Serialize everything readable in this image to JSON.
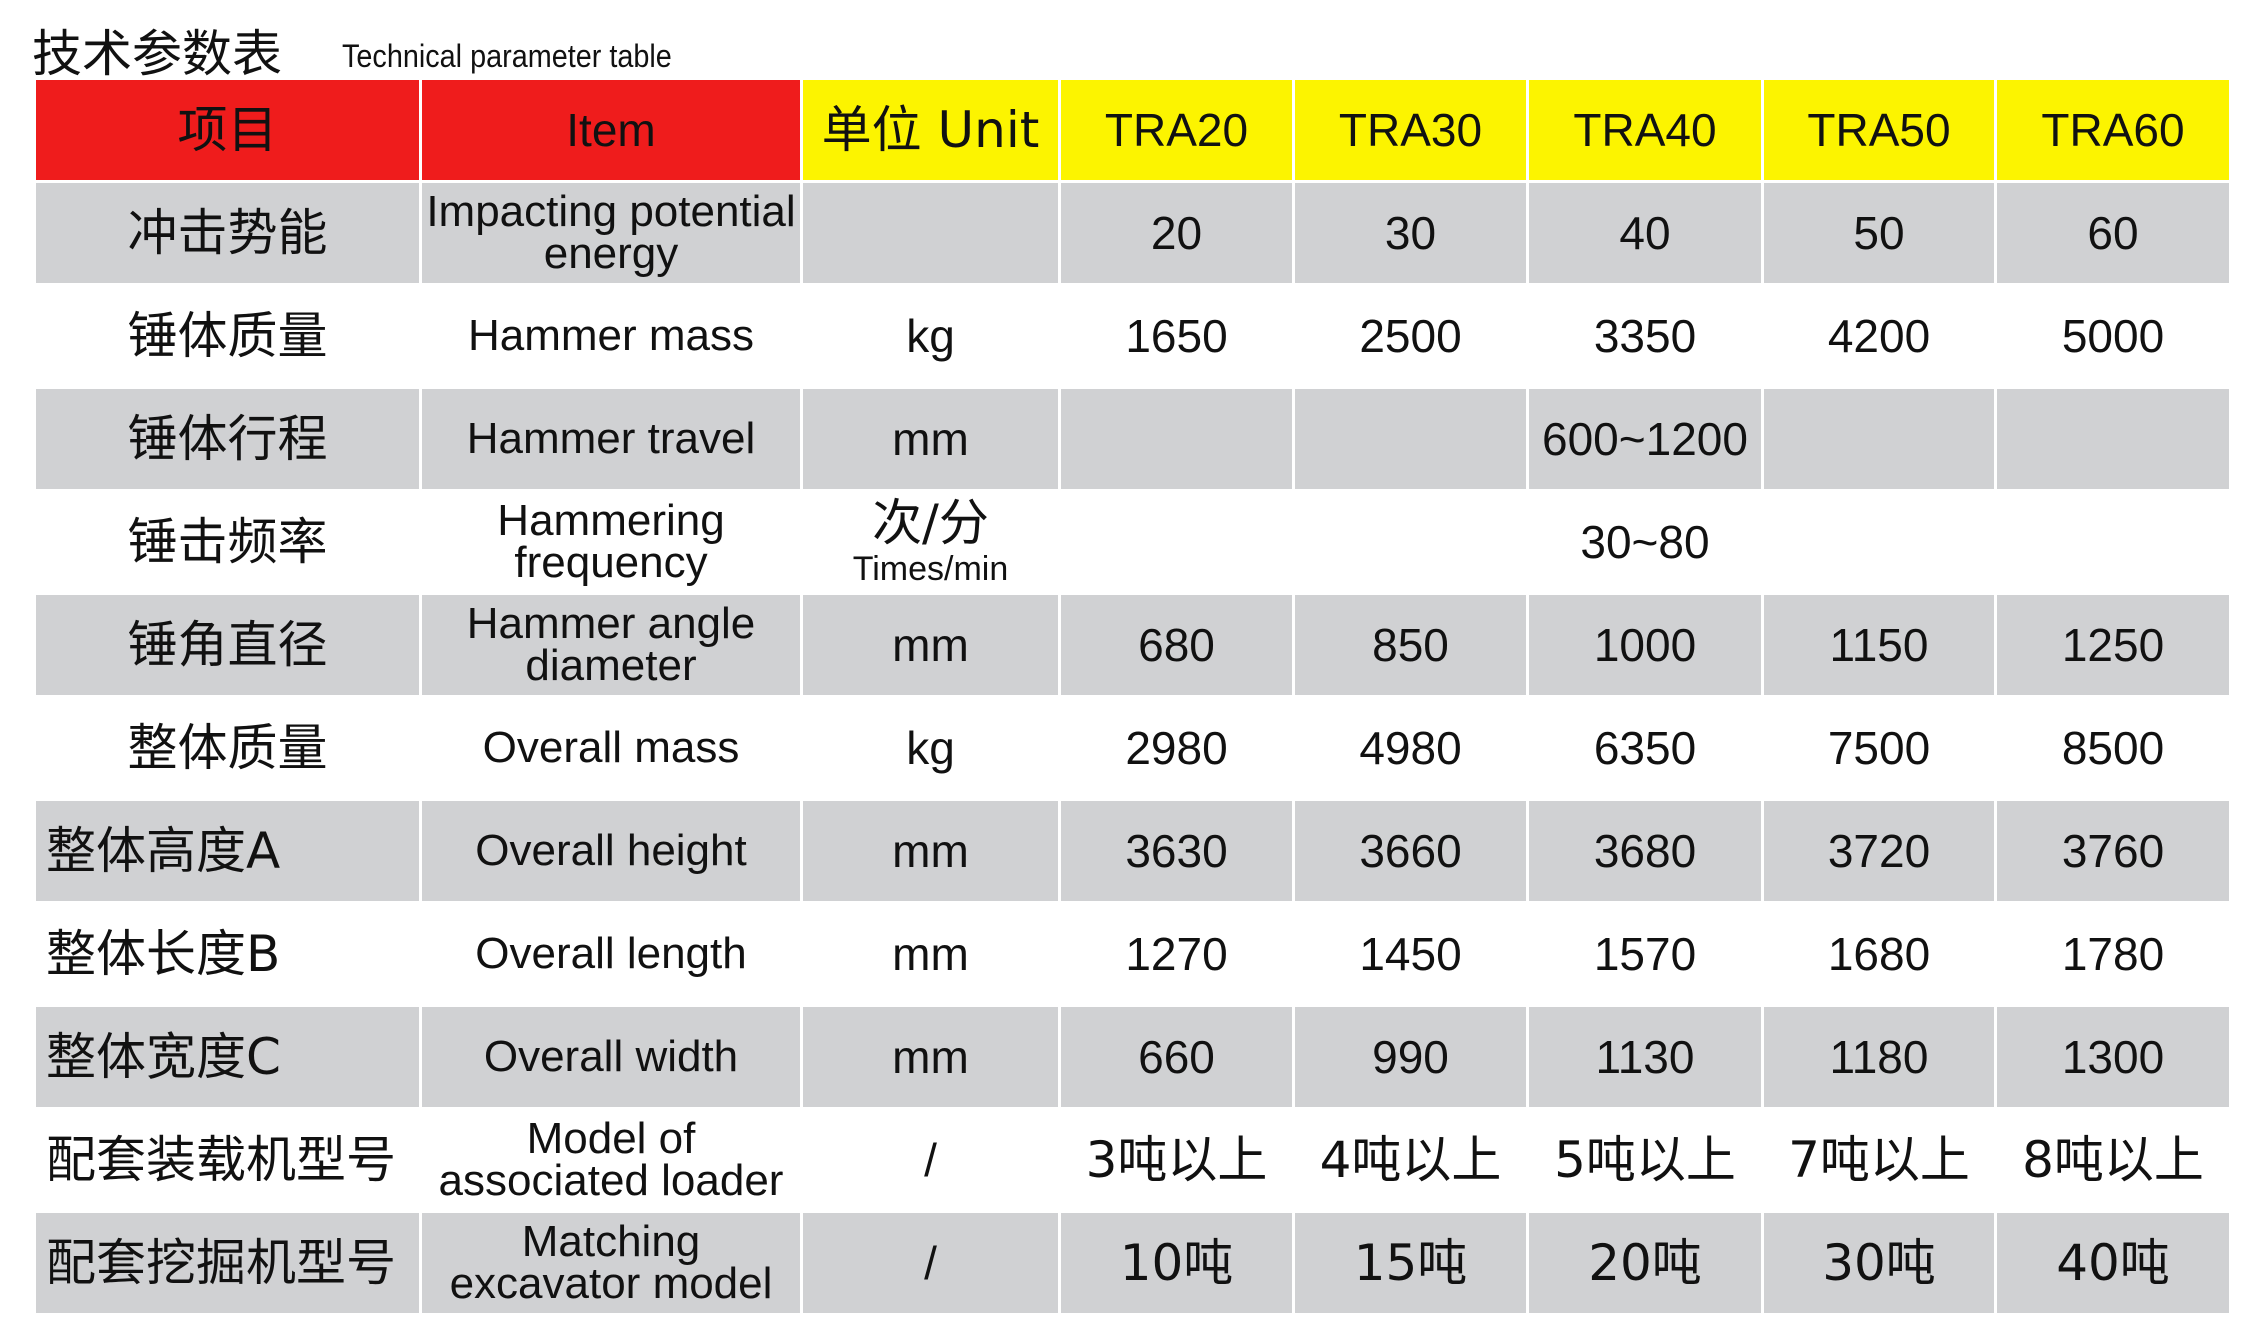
{
  "title_cn": "技术参数表",
  "title_en": "Technical parameter table",
  "colors": {
    "header_red": "#ef1c1c",
    "header_yellow": "#fcf400",
    "row_gray": "#d0d1d3"
  },
  "header": [
    "项目",
    "Item",
    "单位 Unit",
    "TRA20",
    "TRA30",
    "TRA40",
    "TRA50",
    "TRA60"
  ],
  "rows": [
    {
      "cn": "冲击势能",
      "en": "Impacting potential energy",
      "unit": "",
      "values": [
        "20",
        "30",
        "40",
        "50",
        "60"
      ]
    },
    {
      "cn": "锤体质量",
      "en": "Hammer mass",
      "unit": "kg",
      "values": [
        "1650",
        "2500",
        "3350",
        "4200",
        "5000"
      ]
    },
    {
      "cn": "锤体行程",
      "en": "Hammer travel",
      "unit": "mm",
      "values": [
        "",
        "",
        "600~1200",
        "",
        ""
      ]
    },
    {
      "cn": "锤击频率",
      "en": "Hammering frequency",
      "unit": "次/分",
      "unit_sub": "Times/min",
      "values": [
        "30~80"
      ]
    },
    {
      "cn": "锤角直径",
      "en": "Hammer angle diameter",
      "unit": "mm",
      "values": [
        "680",
        "850",
        "1000",
        "1150",
        "1250"
      ]
    },
    {
      "cn": "整体质量",
      "en": "Overall mass",
      "unit": "kg",
      "values": [
        "2980",
        "4980",
        "6350",
        "7500",
        "8500"
      ]
    },
    {
      "cn": "整体高度A",
      "en": "Overall height",
      "unit": "mm",
      "values": [
        "3630",
        "3660",
        "3680",
        "3720",
        "3760"
      ]
    },
    {
      "cn": "整体长度B",
      "en": "Overall length",
      "unit": "mm",
      "values": [
        "1270",
        "1450",
        "1570",
        "1680",
        "1780"
      ]
    },
    {
      "cn": "整体宽度C",
      "en": "Overall width",
      "unit": "mm",
      "values": [
        "660",
        "990",
        "1130",
        "1180",
        "1300"
      ]
    },
    {
      "cn": "配套装载机型号",
      "en": "Model of associated loader",
      "unit": "/",
      "values": [
        "3吨以上",
        "4吨以上",
        "5吨以上",
        "7吨以上",
        "8吨以上"
      ]
    },
    {
      "cn": "配套挖掘机型号",
      "en": "Matching excavator model",
      "unit": "/",
      "values": [
        "10吨",
        "15吨",
        "20吨",
        "30吨",
        "40吨"
      ]
    }
  ]
}
